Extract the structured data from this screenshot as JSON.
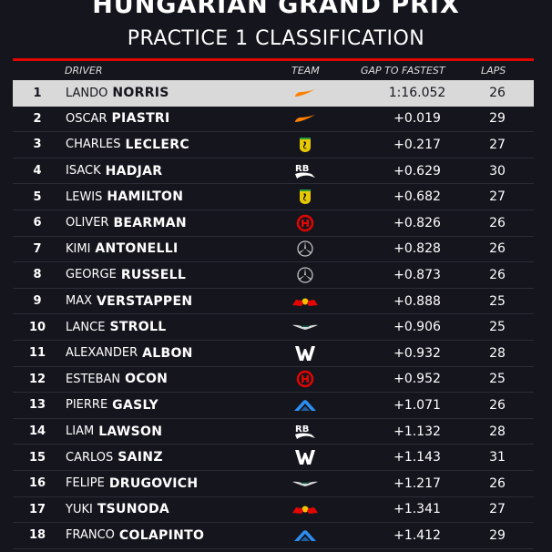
{
  "header": {
    "title": "HUNGARIAN GRAND PRIX",
    "subtitle": "PRACTICE 1 CLASSIFICATION"
  },
  "columns": {
    "driver": "DRIVER",
    "team": "TEAM",
    "gap": "GAP TO FASTEST",
    "laps": "LAPS"
  },
  "team_colors": {
    "mclaren": "#ff8000",
    "ferrari": "#e8c800",
    "racing_bulls": "#ffffff",
    "haas": "#e10600",
    "mercedes": "#c0c0c0",
    "red_bull": "#e10600",
    "aston_martin": "#d8d8d8",
    "williams": "#ffffff",
    "alpine": "#2c8ef0"
  },
  "rows": [
    {
      "pos": "1",
      "first": "LANDO",
      "last": "NORRIS",
      "team": "mclaren",
      "gap": "1:16.052",
      "laps": "26"
    },
    {
      "pos": "2",
      "first": "OSCAR",
      "last": "PIASTRI",
      "team": "mclaren",
      "gap": "+0.019",
      "laps": "29"
    },
    {
      "pos": "3",
      "first": "CHARLES",
      "last": "LECLERC",
      "team": "ferrari",
      "gap": "+0.217",
      "laps": "27"
    },
    {
      "pos": "4",
      "first": "ISACK",
      "last": "HADJAR",
      "team": "racing_bulls",
      "gap": "+0.629",
      "laps": "30"
    },
    {
      "pos": "5",
      "first": "LEWIS",
      "last": "HAMILTON",
      "team": "ferrari",
      "gap": "+0.682",
      "laps": "27"
    },
    {
      "pos": "6",
      "first": "OLIVER",
      "last": "BEARMAN",
      "team": "haas",
      "gap": "+0.826",
      "laps": "26"
    },
    {
      "pos": "7",
      "first": "KIMI",
      "last": "ANTONELLI",
      "team": "mercedes",
      "gap": "+0.828",
      "laps": "26"
    },
    {
      "pos": "8",
      "first": "GEORGE",
      "last": "RUSSELL",
      "team": "mercedes",
      "gap": "+0.873",
      "laps": "26"
    },
    {
      "pos": "9",
      "first": "MAX",
      "last": "VERSTAPPEN",
      "team": "red_bull",
      "gap": "+0.888",
      "laps": "25"
    },
    {
      "pos": "10",
      "first": "LANCE",
      "last": "STROLL",
      "team": "aston_martin",
      "gap": "+0.906",
      "laps": "25"
    },
    {
      "pos": "11",
      "first": "ALEXANDER",
      "last": "ALBON",
      "team": "williams",
      "gap": "+0.932",
      "laps": "28"
    },
    {
      "pos": "12",
      "first": "ESTEBAN",
      "last": "OCON",
      "team": "haas",
      "gap": "+0.952",
      "laps": "25"
    },
    {
      "pos": "13",
      "first": "PIERRE",
      "last": "GASLY",
      "team": "alpine",
      "gap": "+1.071",
      "laps": "26"
    },
    {
      "pos": "14",
      "first": "LIAM",
      "last": "LAWSON",
      "team": "racing_bulls",
      "gap": "+1.132",
      "laps": "28"
    },
    {
      "pos": "15",
      "first": "CARLOS",
      "last": "SAINZ",
      "team": "williams",
      "gap": "+1.143",
      "laps": "31"
    },
    {
      "pos": "16",
      "first": "FELIPE",
      "last": "DRUGOVICH",
      "team": "aston_martin",
      "gap": "+1.217",
      "laps": "26"
    },
    {
      "pos": "17",
      "first": "YUKI",
      "last": "TSUNODA",
      "team": "red_bull",
      "gap": "+1.341",
      "laps": "27"
    },
    {
      "pos": "18",
      "first": "FRANCO",
      "last": "COLAPINTO",
      "team": "alpine",
      "gap": "+1.412",
      "laps": "29"
    }
  ]
}
